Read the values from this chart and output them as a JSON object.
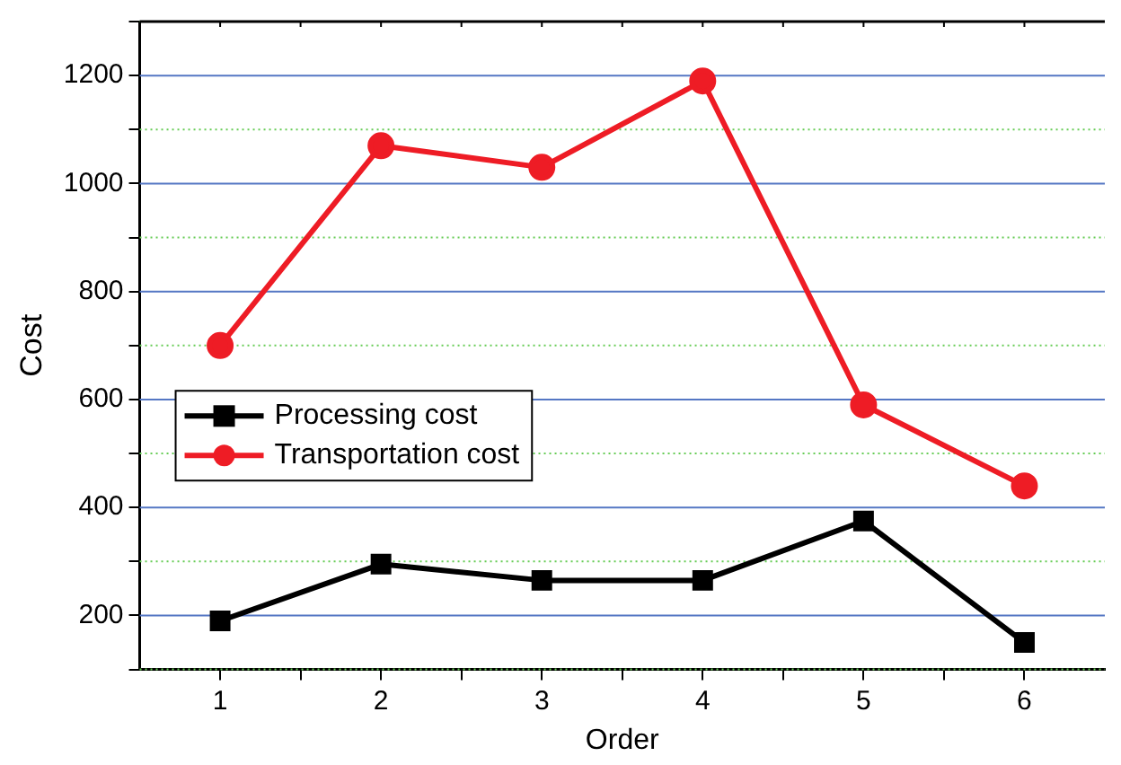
{
  "chart_data": {
    "type": "line",
    "xlabel": "Order",
    "ylabel": "Cost",
    "x": [
      1,
      2,
      3,
      4,
      5,
      6
    ],
    "series": [
      {
        "name": "Processing cost",
        "color": "#000000",
        "marker": "square",
        "values": [
          190,
          295,
          265,
          265,
          375,
          150
        ]
      },
      {
        "name": "Transportation cost",
        "color": "#ee1c25",
        "marker": "circle",
        "values": [
          700,
          1070,
          1030,
          1190,
          590,
          440
        ]
      }
    ],
    "xlim": [
      0.5,
      6.5
    ],
    "xticks": [
      1,
      {
        "value": 1.5,
        "label": null
      },
      2,
      {
        "value": 2.5,
        "label": null
      },
      3,
      {
        "value": 3.5,
        "label": null
      },
      4,
      {
        "value": 4.5,
        "label": null
      },
      5,
      {
        "value": 5.5,
        "label": null
      },
      6
    ],
    "ylim": [
      100,
      1300
    ],
    "yticks": [
      {
        "value": 100,
        "label": null
      },
      200,
      {
        "value": 300,
        "label": null
      },
      400,
      {
        "value": 500,
        "label": null
      },
      600,
      {
        "value": 700,
        "label": null
      },
      800,
      {
        "value": 900,
        "label": null
      },
      1000,
      {
        "value": 1100,
        "label": null
      },
      1200,
      {
        "value": 1300,
        "label": null
      }
    ],
    "grid": "y",
    "legend": "left",
    "line_style": "solid"
  }
}
